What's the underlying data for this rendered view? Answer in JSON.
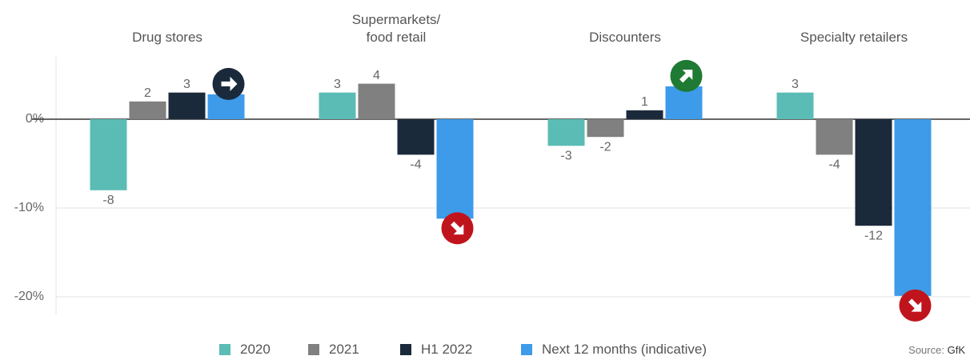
{
  "chart_data": {
    "type": "bar",
    "categories": [
      "Drug stores",
      "Supermarkets/\nfood retail",
      "Discounters",
      "Specialty retailers"
    ],
    "series": [
      {
        "name": "2020",
        "color": "#5bbcb5",
        "values": [
          -8,
          3,
          -3,
          3
        ]
      },
      {
        "name": "2021",
        "color": "#808080",
        "values": [
          2,
          4,
          -2,
          -4
        ]
      },
      {
        "name": "H1 2022",
        "color": "#1b2a3b",
        "values": [
          3,
          -4,
          1,
          -12
        ]
      },
      {
        "name": "Next 12 months (indicative)",
        "color": "#3d9be9",
        "values": [
          2.8,
          -11.2,
          3.7,
          -19.9
        ]
      }
    ],
    "labeled_series": [
      0,
      1,
      2
    ],
    "ylim": [
      -22,
      7
    ],
    "yticks": [
      {
        "value": 0,
        "label": "0%"
      },
      {
        "value": -10,
        "label": "-10%"
      },
      {
        "value": -20,
        "label": "-20%"
      }
    ],
    "grid": true,
    "source_label": "Source:",
    "source": "GfK"
  }
}
